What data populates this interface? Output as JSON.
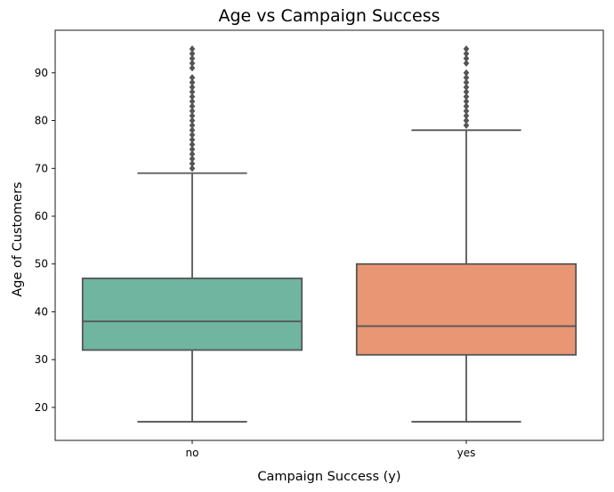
{
  "chart_data": {
    "type": "boxplot",
    "title": "Age vs Campaign Success",
    "xlabel": "Campaign Success (y)",
    "ylabel": "Age of Customers",
    "ylim": [
      13.1,
      98.9
    ],
    "yticks": [
      20,
      30,
      40,
      50,
      60,
      70,
      80,
      90
    ],
    "grid": false,
    "categories": [
      "no",
      "yes"
    ],
    "boxes": [
      {
        "category": "no",
        "color": "#6fb59f",
        "whisker_low": 17,
        "q1": 32,
        "median": 38,
        "q3": 47,
        "whisker_high": 69,
        "outliers": [
          70,
          71,
          72,
          73,
          74,
          75,
          76,
          77,
          78,
          79,
          80,
          81,
          82,
          83,
          84,
          85,
          86,
          87,
          88,
          89,
          91,
          92,
          93,
          94,
          95
        ]
      },
      {
        "category": "yes",
        "color": "#e99674",
        "whisker_low": 17,
        "q1": 31,
        "median": 37,
        "q3": 50,
        "whisker_high": 78,
        "outliers": [
          79,
          80,
          81,
          82,
          83,
          84,
          85,
          86,
          87,
          88,
          89,
          90,
          92,
          93,
          94,
          95
        ]
      }
    ]
  }
}
